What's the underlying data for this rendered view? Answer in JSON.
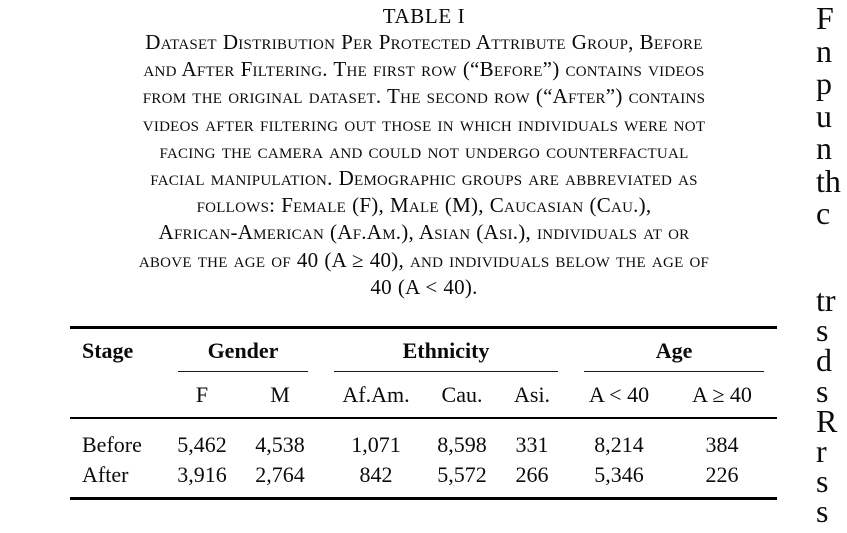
{
  "float": {
    "label": "TABLE I",
    "caption_lines": [
      "Dataset Distribution Per Protected Attribute Group, Before",
      "and After Filtering. The first row (“Before”) contains videos",
      "from the original dataset. The second row (“After”) contains",
      "videos after filtering out those in which individuals were not",
      "facing the camera and could not undergo counterfactual",
      "facial manipulation. Demographic groups are abbreviated as",
      "follows: Female (F), Male (M), Caucasian (Cau.),",
      "African-American (Af.Am.), Asian (Asi.), individuals at or",
      "above the age of 40 (A ≥ 40), and individuals below the age of",
      "40 (A < 40)."
    ],
    "table": {
      "corner_header": "Stage",
      "groups": [
        {
          "label": "Gender",
          "cols": [
            "F",
            "M"
          ]
        },
        {
          "label": "Ethnicity",
          "cols": [
            "Af.Am.",
            "Cau.",
            "Asi."
          ]
        },
        {
          "label": "Age",
          "cols": [
            "A < 40",
            "A ≥ 40"
          ]
        }
      ],
      "rows": [
        {
          "stage": "Before",
          "values": [
            "5,462",
            "4,538",
            "1,071",
            "8,598",
            "331",
            "8,214",
            "384"
          ]
        },
        {
          "stage": "After",
          "values": [
            "3,916",
            "2,764",
            "842",
            "5,572",
            "266",
            "5,346",
            "226"
          ]
        }
      ]
    }
  },
  "adjacent_column_fragments": {
    "top_group": [
      "F",
      "n",
      "p",
      "u",
      "n",
      "th",
      "c"
    ],
    "bottom_group": [
      "tr",
      "s",
      "d",
      "s",
      "R",
      "r",
      "s",
      "s"
    ]
  },
  "colors": {
    "background": "#ffffff",
    "text": "#0b0b0b",
    "rule": "#000000",
    "cmidrule": "#1d1d1d"
  }
}
